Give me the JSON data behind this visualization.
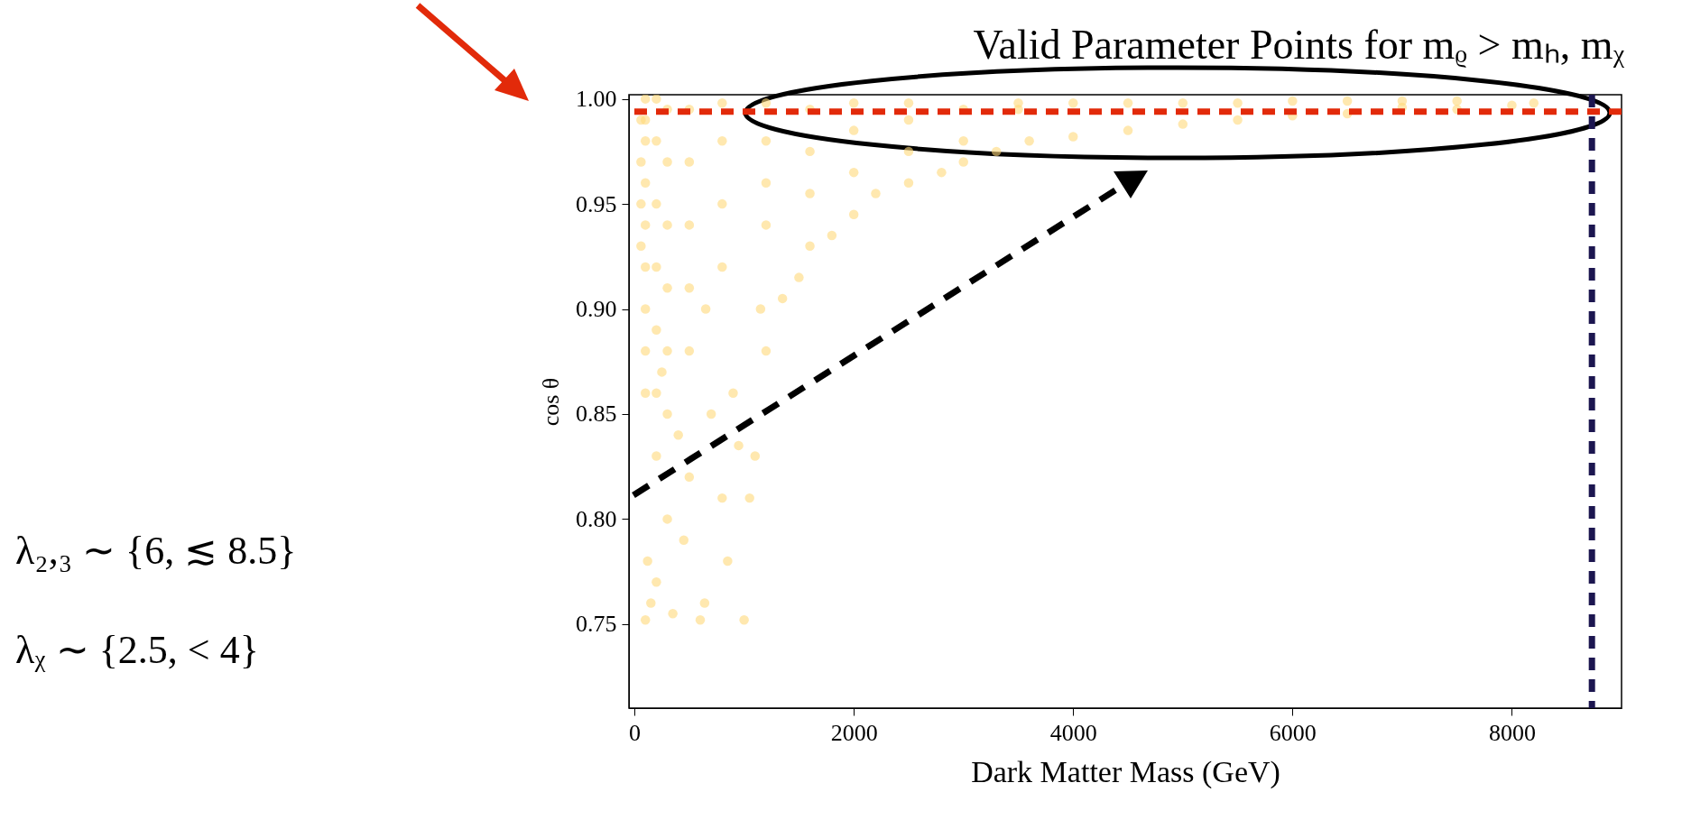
{
  "chart_data": {
    "type": "scatter",
    "title": "Valid Parameter Points for mᵨ > mₕ, mᵪ",
    "xlabel": "Dark Matter Mass (GeV)",
    "ylabel": "cos θ",
    "annotations": [
      "λ₂,₃ ∼ {6, ≲ 8.5}",
      "λᵪ ∼ {2.5, < 4}"
    ],
    "xlim": [
      -50,
      9000
    ],
    "xticks": [
      0,
      2000,
      4000,
      6000,
      8000
    ],
    "ylim": [
      0.71,
      1.002
    ],
    "yticks": [
      {
        "value": 0.75,
        "label": "0.75"
      },
      {
        "value": 0.8,
        "label": "0.80"
      },
      {
        "value": 0.85,
        "label": "0.85"
      },
      {
        "value": 0.9,
        "label": "0.90"
      },
      {
        "value": 0.95,
        "label": "0.95"
      },
      {
        "value": 1.0,
        "label": "1.00"
      }
    ],
    "grid": false,
    "marker": "circle",
    "ref_lines": [
      {
        "axis": "y",
        "value": 0.994,
        "color": "#e22a0a",
        "line_style": "dashed"
      },
      {
        "axis": "x",
        "value": 8730,
        "color": "#1c1650",
        "line_style": "dashed"
      }
    ],
    "series": [
      {
        "color": "#ffd97a",
        "x": [
          100,
          150,
          120,
          200,
          350,
          600,
          640,
          850,
          1000,
          800,
          1050,
          1100,
          950,
          500,
          300,
          450,
          700,
          900,
          1200,
          1150,
          1500,
          1600,
          1350,
          1800,
          2000,
          2200,
          2500,
          2800,
          3000,
          3300,
          3600,
          4000,
          4500,
          5000,
          5500,
          6000,
          6500,
          7000,
          7500,
          8000,
          8200,
          100,
          100,
          100,
          100,
          100,
          100,
          100,
          100,
          100,
          200,
          200,
          200,
          200,
          200,
          200,
          200,
          300,
          300,
          300,
          300,
          300,
          300,
          500,
          500,
          500,
          500,
          500,
          800,
          800,
          800,
          800,
          1200,
          1200,
          1200,
          1200,
          1600,
          1600,
          1600,
          2000,
          2000,
          2000,
          2500,
          2500,
          2500,
          3000,
          3000,
          3500,
          3500,
          4000,
          4500,
          5000,
          5500,
          6000,
          6500,
          7000,
          7500,
          60,
          60,
          60,
          60,
          400,
          650,
          250
        ],
        "values": [
          0.752,
          0.76,
          0.78,
          0.77,
          0.755,
          0.752,
          0.76,
          0.78,
          0.752,
          0.81,
          0.81,
          0.83,
          0.835,
          0.82,
          0.8,
          0.79,
          0.85,
          0.86,
          0.88,
          0.9,
          0.915,
          0.93,
          0.905,
          0.935,
          0.945,
          0.955,
          0.96,
          0.965,
          0.97,
          0.975,
          0.98,
          0.982,
          0.985,
          0.988,
          0.99,
          0.992,
          0.993,
          0.996,
          0.995,
          0.997,
          0.998,
          0.86,
          0.88,
          0.9,
          0.92,
          0.94,
          0.96,
          0.98,
          0.99,
          1.0,
          0.83,
          0.86,
          0.89,
          0.92,
          0.95,
          0.98,
          1.0,
          0.85,
          0.88,
          0.91,
          0.94,
          0.97,
          0.995,
          0.88,
          0.91,
          0.94,
          0.97,
          0.995,
          0.92,
          0.95,
          0.98,
          0.998,
          0.94,
          0.96,
          0.98,
          0.998,
          0.955,
          0.975,
          0.995,
          0.965,
          0.985,
          0.998,
          0.975,
          0.99,
          0.998,
          0.98,
          0.995,
          0.995,
          0.998,
          0.998,
          0.998,
          0.998,
          0.998,
          0.999,
          0.999,
          0.999,
          0.999,
          0.99,
          0.97,
          0.95,
          0.93,
          0.84,
          0.9,
          0.87
        ]
      }
    ]
  }
}
